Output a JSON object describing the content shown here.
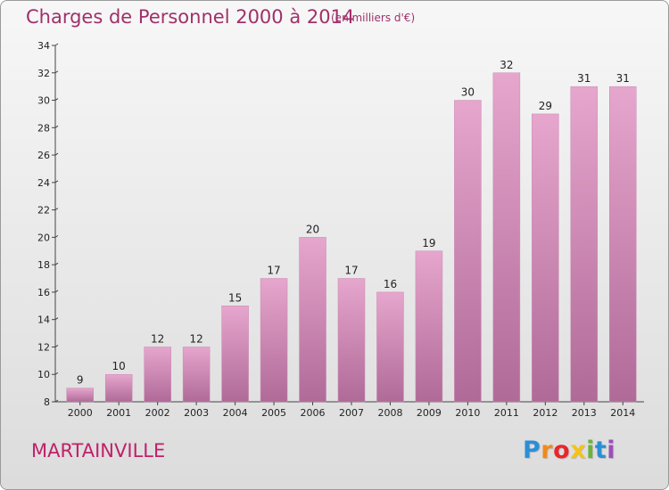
{
  "chart_data": {
    "type": "bar",
    "title": "Charges de Personnel 2000 à 2014",
    "subtitle": "(en milliers d'€)",
    "categories": [
      "2000",
      "2001",
      "2002",
      "2003",
      "2004",
      "2005",
      "2006",
      "2007",
      "2008",
      "2009",
      "2010",
      "2011",
      "2012",
      "2013",
      "2014"
    ],
    "values": [
      9,
      10,
      12,
      12,
      15,
      17,
      20,
      17,
      16,
      19,
      30,
      32,
      29,
      31,
      31
    ],
    "ylim": [
      8,
      34
    ],
    "yticks": [
      8,
      10,
      12,
      14,
      16,
      18,
      20,
      22,
      24,
      26,
      28,
      30,
      32,
      34
    ],
    "grid": false,
    "bar_color_top": "#e6a6cd",
    "bar_color_bottom": "#b06a98"
  },
  "footer": {
    "city": "MARTAINVILLE",
    "logo_letters": [
      "P",
      "r",
      "o",
      "x",
      "i",
      "t",
      "i"
    ],
    "logo_colors": [
      "#2b8fd6",
      "#f08a1c",
      "#e8262c",
      "#f5c21b",
      "#6bb33a",
      "#2b8fd6",
      "#9a4fb8"
    ]
  }
}
